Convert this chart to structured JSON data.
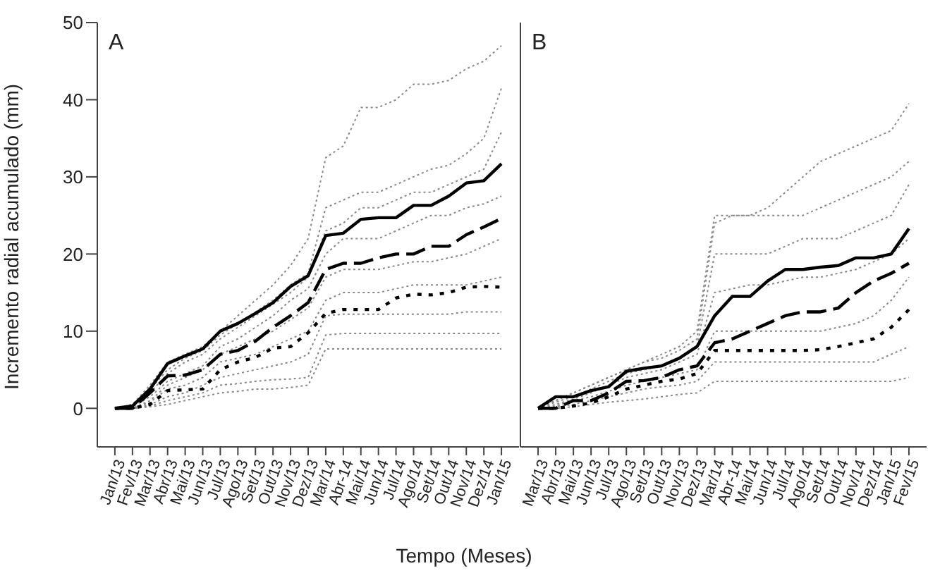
{
  "chart_data": [
    {
      "type": "line",
      "title": "A",
      "ylabel": "Incremento radial acumulado (mm)",
      "xlabel": "Tempo (Meses)",
      "categories": [
        "Jan/13",
        "Fev/13",
        "Mar/13",
        "Abr/13",
        "Mai/13",
        "Jun/13",
        "Jul/13",
        "Ago/13",
        "Set/13",
        "Out/13",
        "Nov/13",
        "Dez/13",
        "Mar/14",
        "Abr-14",
        "Mai/14",
        "Jun/14",
        "Jul/14",
        "Ago/14",
        "Set/14",
        "Out/14",
        "Nov/14",
        "Dez/14",
        "Jan/15"
      ],
      "ylim": [
        -5,
        50
      ],
      "yticks": [
        0,
        10,
        20,
        30,
        40,
        50
      ],
      "grid": false,
      "legend": false,
      "marker": "none",
      "series": [
        {
          "color": "#888888",
          "line_style": "dotted",
          "values": [
            0,
            0.5,
            3,
            6,
            7,
            8,
            10,
            12,
            14,
            16,
            18.5,
            22,
            32.5,
            34,
            39,
            39,
            40,
            42,
            42,
            42.5,
            44,
            45,
            47
          ]
        },
        {
          "color": "#888888",
          "line_style": "dotted",
          "values": [
            0,
            0.5,
            2.5,
            5,
            6.5,
            7.5,
            9.5,
            11,
            12.5,
            14,
            16,
            17.5,
            26,
            27,
            28,
            28,
            29,
            30,
            31,
            31.5,
            33,
            35,
            41.5
          ]
        },
        {
          "color": "#888888",
          "line_style": "dotted",
          "values": [
            0,
            0.3,
            2,
            4.5,
            6,
            7,
            9,
            10.5,
            12,
            13.5,
            15,
            17,
            23,
            24,
            26,
            26,
            27,
            28,
            28,
            29,
            30,
            31,
            35.8
          ]
        },
        {
          "color": "#888888",
          "line_style": "dotted",
          "values": [
            0,
            0.2,
            1.5,
            3.5,
            4.5,
            5.5,
            8,
            9,
            10.5,
            12,
            14,
            15.5,
            20,
            22,
            22,
            22,
            23,
            24,
            25,
            25,
            26,
            26.5,
            27.5
          ]
        },
        {
          "color": "#888888",
          "line_style": "dotted",
          "values": [
            0,
            0,
            1,
            3,
            4,
            5,
            7,
            8,
            9,
            10,
            11.5,
            13,
            17,
            18,
            18,
            18,
            18.5,
            19,
            19,
            19.5,
            20,
            21,
            22
          ]
        },
        {
          "color": "#888888",
          "line_style": "dotted",
          "values": [
            0,
            0,
            0.8,
            2.5,
            3,
            4,
            6,
            6.5,
            7,
            8,
            9,
            10,
            14,
            15,
            15,
            15,
            15.5,
            16,
            16,
            16,
            16,
            16.5,
            17
          ]
        },
        {
          "color": "#888888",
          "line_style": "dotted",
          "values": [
            0,
            0,
            0.5,
            1.5,
            2,
            3,
            4,
            4.5,
            5,
            5.5,
            6,
            7,
            12,
            12.2,
            12.2,
            12.2,
            12.2,
            12.2,
            12.2,
            12.2,
            12.5,
            12.5,
            12.5
          ]
        },
        {
          "color": "#888888",
          "line_style": "dotted",
          "values": [
            0,
            0,
            0.3,
            1,
            1.5,
            2,
            3,
            3.2,
            3.5,
            3.7,
            3.8,
            4,
            9.5,
            9.7,
            9.7,
            9.7,
            9.7,
            9.7,
            9.7,
            9.7,
            9.7,
            9.7,
            9.7
          ]
        },
        {
          "color": "#888888",
          "line_style": "dotted",
          "values": [
            0,
            0,
            0.2,
            0.5,
            1,
            1.5,
            2,
            2.2,
            2.5,
            2.5,
            2.7,
            3,
            7.7,
            7.7,
            7.7,
            7.7,
            7.7,
            7.7,
            7.7,
            7.7,
            7.7,
            7.7,
            7.7
          ]
        },
        {
          "color": "#000000",
          "line_style": "solid",
          "values": [
            0,
            0.3,
            2.5,
            5.8,
            6.8,
            7.7,
            10,
            11,
            12.3,
            13.7,
            15.8,
            17.2,
            22.4,
            22.7,
            24.5,
            24.7,
            24.7,
            26.3,
            26.3,
            27.5,
            29.2,
            29.5,
            31.7
          ]
        },
        {
          "color": "#000000",
          "line_style": "dashed",
          "values": [
            0,
            0,
            2,
            4.2,
            4.3,
            5,
            7,
            7.5,
            8.7,
            10.5,
            12,
            13.7,
            18,
            18.8,
            18.8,
            19.5,
            20,
            20,
            21,
            21,
            22.5,
            23.5,
            24.6
          ]
        },
        {
          "color": "#000000",
          "line_style": "dotted",
          "values": [
            0,
            0,
            0.5,
            2.3,
            2.4,
            2.5,
            5,
            6,
            6.6,
            7.8,
            8,
            9.8,
            12.3,
            12.8,
            12.8,
            12.8,
            14.3,
            14.8,
            14.7,
            15,
            15.7,
            15.8,
            15.7
          ]
        }
      ]
    },
    {
      "type": "line",
      "title": "B",
      "tick_labels": "x",
      "categories": [
        "Mar/13",
        "Abr/13",
        "Mai/13",
        "Jun/13",
        "Jul/13",
        "Ago/13",
        "Set/13",
        "Out/13",
        "Nov/13",
        "Dez/13",
        "Mar/14",
        "Abr-14",
        "Mai/14",
        "Jun/14",
        "Jul/14",
        "Ago/14",
        "Set/14",
        "Out/14",
        "Nov/14",
        "Dez/14",
        "Jan/15",
        "Fev/15"
      ],
      "ylim": [
        -5,
        50
      ],
      "yticks": [
        0,
        10,
        20,
        30,
        40,
        50
      ],
      "grid": false,
      "legend": false,
      "marker": "none",
      "series": [
        {
          "color": "#888888",
          "line_style": "dotted",
          "values": [
            0,
            1,
            2,
            3,
            4,
            5,
            6,
            7,
            8,
            10,
            25,
            25,
            25,
            26,
            28,
            30,
            32,
            33,
            34,
            35,
            36,
            39.5
          ]
        },
        {
          "color": "#888888",
          "line_style": "dotted",
          "values": [
            0,
            1,
            2,
            3,
            4,
            5,
            6,
            6.5,
            7.5,
            9,
            24,
            25,
            25,
            25,
            25,
            25,
            26,
            27,
            28,
            29,
            30,
            32
          ]
        },
        {
          "color": "#888888",
          "line_style": "dotted",
          "values": [
            0,
            0.8,
            1.5,
            2.5,
            3.5,
            4.5,
            5,
            5.5,
            6.5,
            8,
            20,
            20,
            20,
            20,
            21,
            22,
            22,
            22,
            23,
            24,
            25,
            29
          ]
        },
        {
          "color": "#888888",
          "line_style": "dotted",
          "values": [
            0,
            0.5,
            1.2,
            2,
            3,
            4,
            4.5,
            5,
            6,
            7,
            15,
            15.5,
            16,
            16,
            16.5,
            17,
            17,
            17.5,
            18,
            19,
            20,
            22
          ]
        },
        {
          "color": "#888888",
          "line_style": "dotted",
          "values": [
            0,
            0.3,
            1,
            1.5,
            2.2,
            3,
            3.5,
            4,
            4.5,
            5,
            10,
            10,
            10,
            10,
            10,
            10,
            10,
            10.5,
            11,
            12,
            14,
            17
          ]
        },
        {
          "color": "#888888",
          "line_style": "dotted",
          "values": [
            0,
            0.2,
            0.5,
            1,
            1.5,
            2,
            2.5,
            2.8,
            3,
            3.5,
            6,
            6,
            6,
            6,
            6,
            6,
            6,
            6,
            6,
            6,
            7,
            8
          ]
        },
        {
          "color": "#888888",
          "line_style": "dotted",
          "values": [
            0,
            0,
            0.2,
            0.5,
            0.8,
            1,
            1.2,
            1.5,
            1.8,
            2,
            3.5,
            3.5,
            3.5,
            3.5,
            3.5,
            3.5,
            3.5,
            3.5,
            3.5,
            3.5,
            3.5,
            4
          ]
        },
        {
          "color": "#000000",
          "line_style": "solid",
          "values": [
            0,
            1.5,
            1.5,
            2.3,
            2.8,
            4.8,
            5.2,
            5.5,
            6.5,
            8,
            12,
            14.5,
            14.5,
            16.5,
            18,
            18,
            18.3,
            18.5,
            19.5,
            19.5,
            20,
            23.3
          ]
        },
        {
          "color": "#000000",
          "line_style": "dashed",
          "values": [
            0,
            0,
            1,
            1,
            2,
            3.5,
            3.6,
            4,
            5,
            5.5,
            8.5,
            9,
            10,
            11,
            12,
            12.5,
            12.5,
            13,
            15,
            16.5,
            17.5,
            18.8
          ]
        },
        {
          "color": "#000000",
          "line_style": "dotted",
          "values": [
            0,
            0,
            0.3,
            0.7,
            1.5,
            2.5,
            3,
            3.5,
            3.8,
            4.5,
            7.5,
            7.5,
            7.5,
            7.5,
            7.5,
            7.5,
            7.6,
            8,
            8.5,
            9,
            10.5,
            12.8
          ]
        }
      ]
    }
  ]
}
